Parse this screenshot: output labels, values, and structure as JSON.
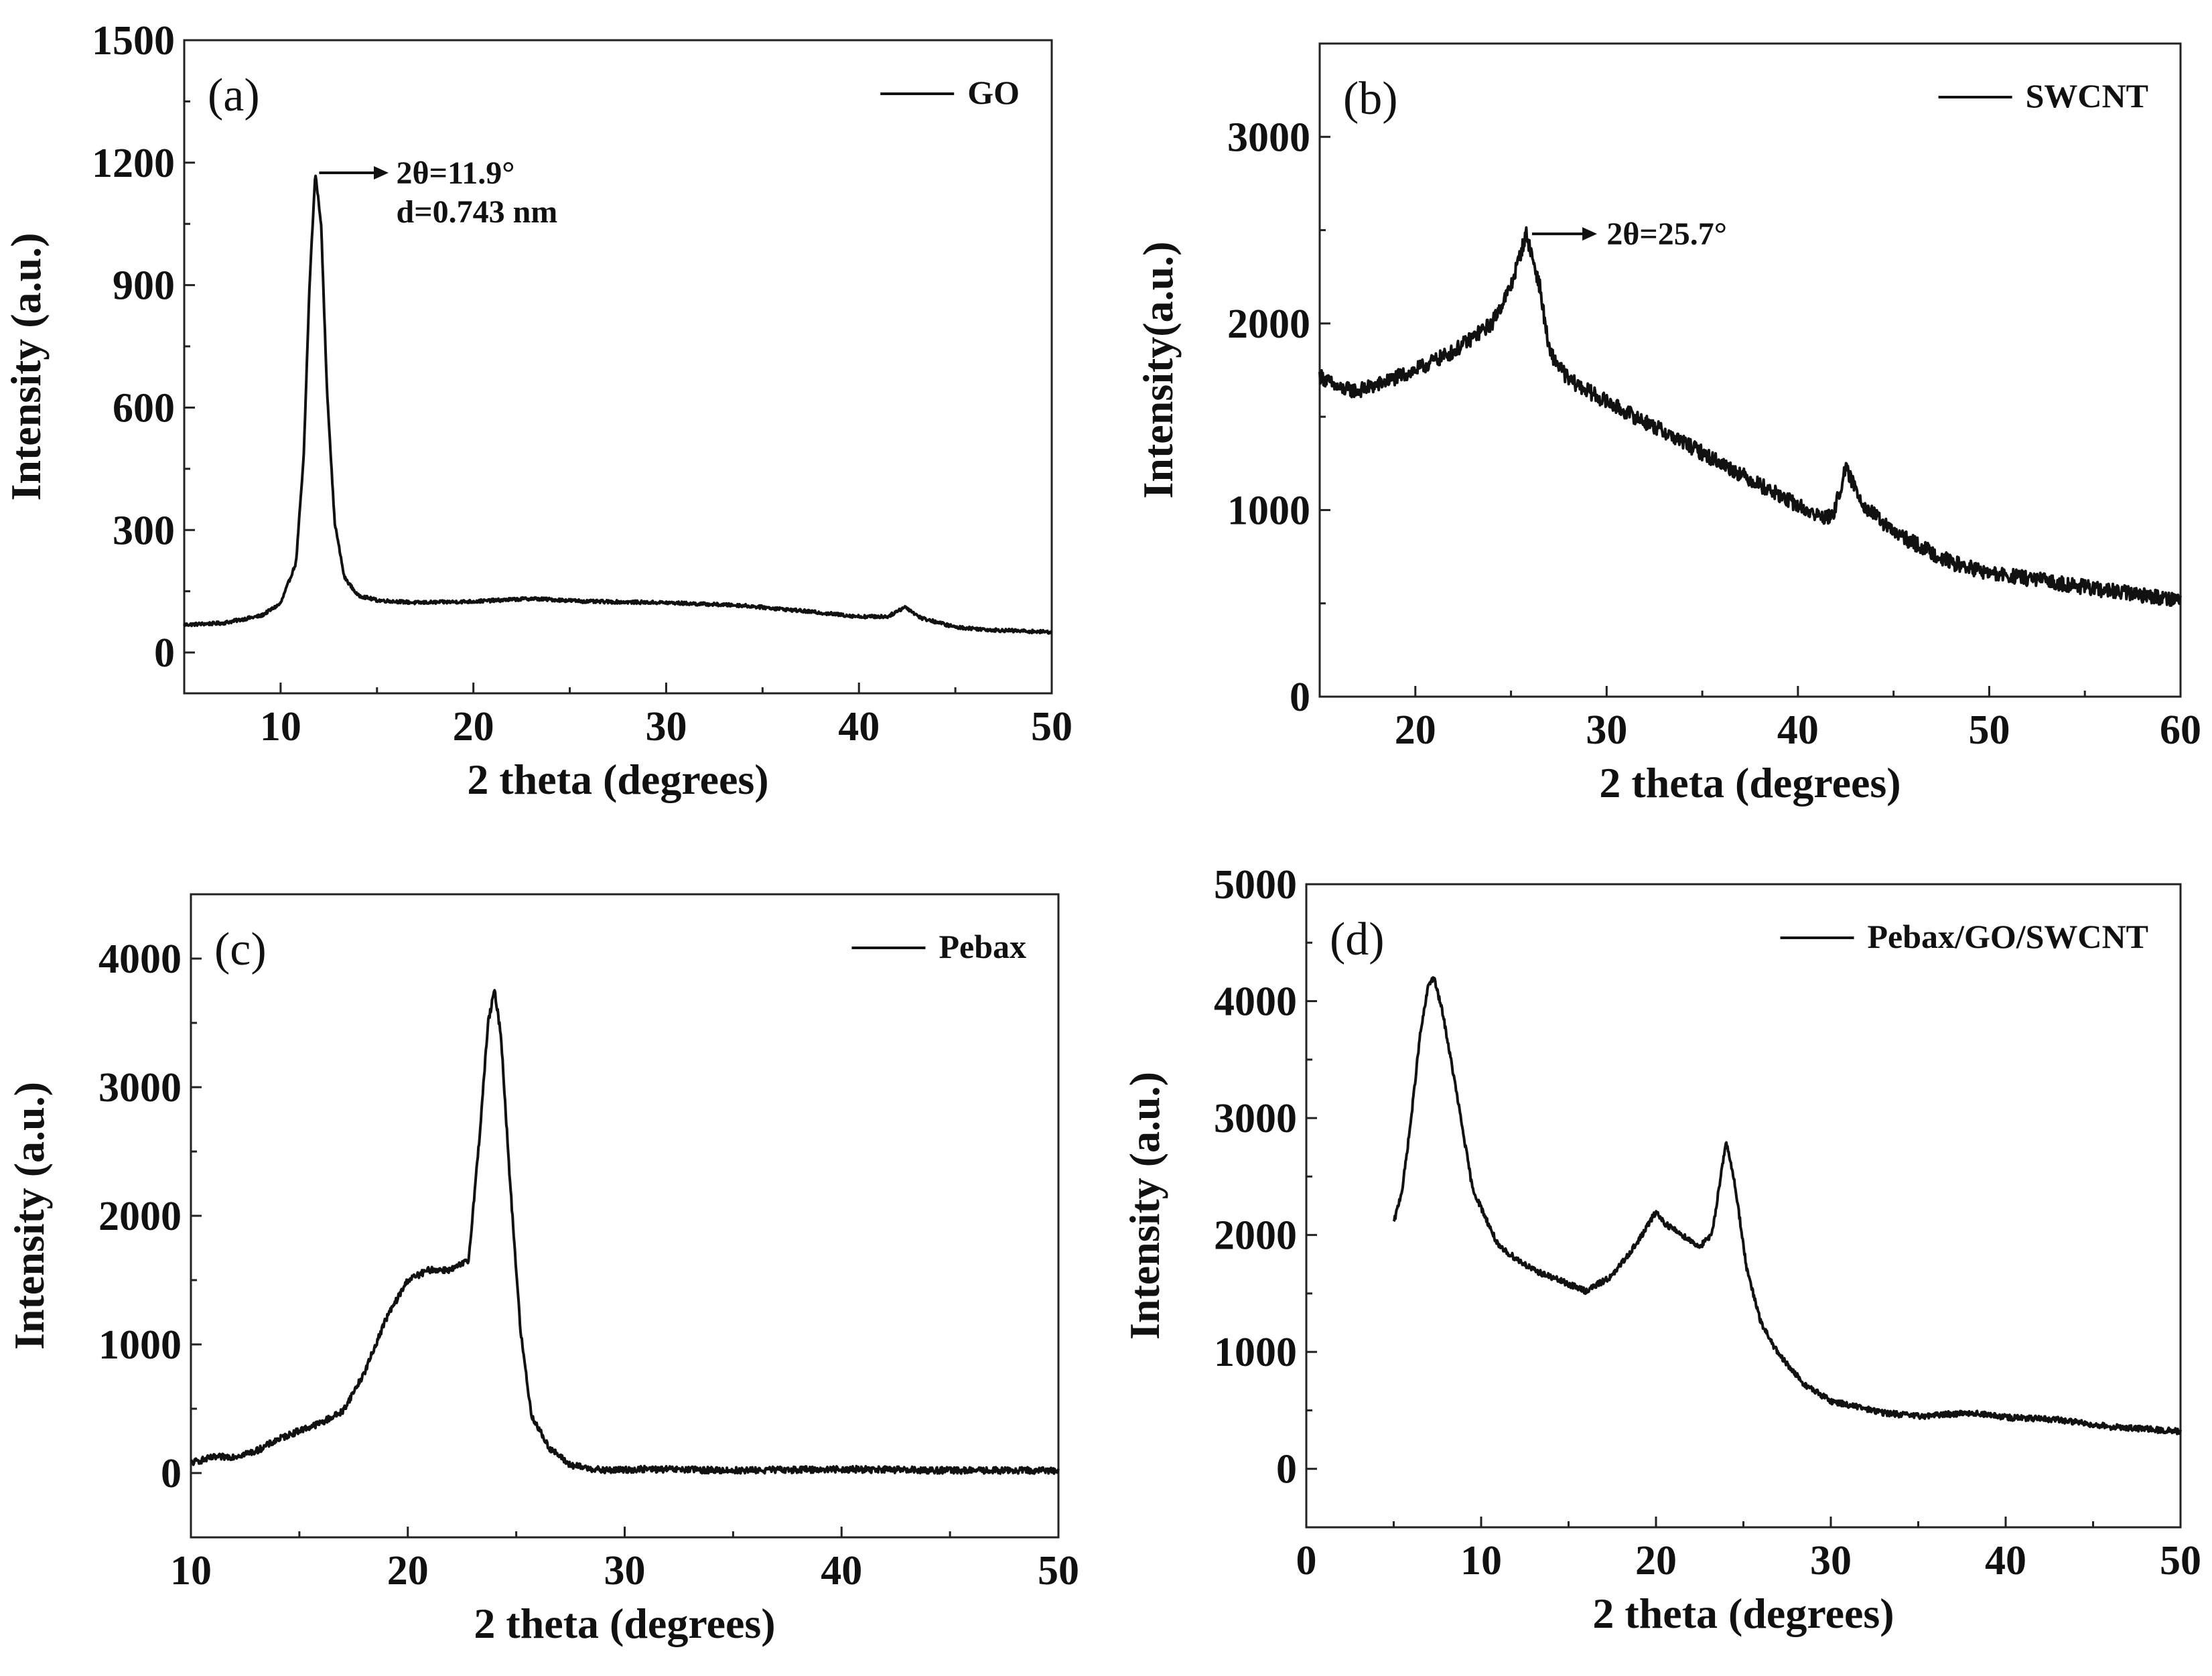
{
  "figure": {
    "colors": {
      "line": "#111111",
      "axis": "#222222",
      "background": "#ffffff"
    },
    "x_title": "2 theta (degrees)"
  },
  "chart_data": [
    {
      "id": "a",
      "type": "line",
      "panel_label": "(a)",
      "legend": "GO",
      "legend_position": "top-right",
      "xlabel": "2 theta (degrees)",
      "ylabel": "Intensity (a.u.)",
      "xlim": [
        5,
        50
      ],
      "ylim": [
        -100,
        1500
      ],
      "xticks": [
        10,
        20,
        30,
        40,
        50
      ],
      "xtick_labels": [
        "10",
        "20",
        "30",
        "40",
        "50"
      ],
      "yticks": [
        0,
        300,
        600,
        900,
        1200,
        1500
      ],
      "ytick_labels": [
        "0",
        "300",
        "600",
        "900",
        "1200",
        "1500"
      ],
      "noise": 4,
      "series": [
        {
          "name": "GO",
          "x": [
            5,
            7,
            9,
            10,
            10.8,
            11.2,
            11.5,
            11.8,
            12.1,
            12.4,
            12.8,
            13.3,
            14,
            15,
            17,
            20,
            23,
            26,
            30,
            34,
            37,
            40,
            41.5,
            42.4,
            43.2,
            45,
            47,
            50
          ],
          "y": [
            68,
            72,
            90,
            120,
            220,
            480,
            900,
            1175,
            1050,
            650,
            320,
            185,
            140,
            128,
            122,
            125,
            132,
            125,
            122,
            115,
            102,
            88,
            88,
            112,
            85,
            62,
            55,
            50
          ]
        }
      ],
      "annotations": [
        {
          "lines": [
            "2θ=11.9°",
            "d=0.743 nm"
          ],
          "arrow_from": [
            12.0,
            1175
          ],
          "arrow_to": [
            15.6,
            1175
          ],
          "text_at": [
            16.0,
            1175
          ]
        }
      ]
    },
    {
      "id": "b",
      "type": "line",
      "panel_label": "(b)",
      "legend": "SWCNT",
      "legend_position": "top-right",
      "xlabel": "2 theta (degrees)",
      "ylabel": "Intensity(a.u.)",
      "xlim": [
        15,
        60
      ],
      "ylim": [
        0,
        3500
      ],
      "xticks": [
        20,
        30,
        40,
        50,
        60
      ],
      "xtick_labels": [
        "20",
        "30",
        "40",
        "50",
        "60"
      ],
      "yticks": [
        0,
        1000,
        2000,
        3000
      ],
      "ytick_labels": [
        "0",
        "1000",
        "2000",
        "3000"
      ],
      "noise": 40,
      "series": [
        {
          "name": "SWCNT",
          "x": [
            15,
            16,
            17,
            18,
            20,
            22,
            24,
            25,
            25.8,
            26.5,
            27,
            28,
            30,
            33,
            36,
            39,
            41,
            41.8,
            42.5,
            43.5,
            45,
            48,
            50,
            53,
            56,
            60
          ],
          "y": [
            1720,
            1650,
            1640,
            1670,
            1750,
            1850,
            2000,
            2200,
            2480,
            2200,
            1850,
            1700,
            1580,
            1420,
            1250,
            1080,
            970,
            960,
            1220,
            1020,
            880,
            720,
            660,
            620,
            570,
            520
          ]
        }
      ],
      "annotations": [
        {
          "lines": [
            "2θ=25.7°"
          ],
          "arrow_from": [
            26.1,
            2480
          ],
          "arrow_to": [
            29.5,
            2480
          ],
          "text_at": [
            30.0,
            2480
          ]
        }
      ]
    },
    {
      "id": "c",
      "type": "line",
      "panel_label": "(c)",
      "legend": "Pebax",
      "legend_position": "top-right",
      "xlabel": "2 theta (degrees)",
      "ylabel": "Intensity (a.u.)",
      "xlim": [
        10,
        50
      ],
      "ylim": [
        -500,
        4500
      ],
      "xticks": [
        10,
        20,
        30,
        40,
        50
      ],
      "xtick_labels": [
        "10",
        "20",
        "30",
        "40",
        "50"
      ],
      "yticks": [
        0,
        1000,
        2000,
        3000,
        4000
      ],
      "ytick_labels": [
        "0",
        "1000",
        "2000",
        "3000",
        "4000"
      ],
      "noise": 25,
      "series": [
        {
          "name": "Pebax",
          "x": [
            10,
            11,
            12,
            13,
            14,
            15,
            16,
            17,
            18,
            19,
            20,
            21,
            22,
            22.8,
            23.3,
            23.7,
            24,
            24.3,
            24.7,
            25.2,
            25.7,
            26.5,
            27.5,
            29,
            31,
            35,
            40,
            45,
            50
          ],
          "y": [
            80,
            120,
            130,
            170,
            260,
            330,
            390,
            480,
            780,
            1200,
            1500,
            1580,
            1580,
            1650,
            2600,
            3500,
            3750,
            3400,
            2300,
            1100,
            450,
            200,
            60,
            20,
            30,
            20,
            30,
            20,
            20
          ]
        }
      ],
      "annotations": []
    },
    {
      "id": "d",
      "type": "line",
      "panel_label": "(d)",
      "legend": "Pebax/GO/SWCNT",
      "legend_position": "top-right",
      "xlabel": "2 theta (degrees)",
      "ylabel": "Intensity (a.u.)",
      "xlim": [
        0,
        50
      ],
      "ylim": [
        -500,
        5000
      ],
      "xticks": [
        0,
        10,
        20,
        30,
        40,
        50
      ],
      "xtick_labels": [
        "0",
        "10",
        "20",
        "30",
        "40",
        "50"
      ],
      "yticks": [
        0,
        1000,
        2000,
        3000,
        4000,
        5000
      ],
      "ytick_labels": [
        "0",
        "1000",
        "2000",
        "3000",
        "4000",
        "5000"
      ],
      "noise": 25,
      "series": [
        {
          "name": "Pebax/GO/SWCNT",
          "x": [
            5,
            5.5,
            6,
            6.5,
            7,
            7.3,
            7.8,
            8.5,
            9.5,
            11,
            13,
            15,
            16,
            17.5,
            19,
            20,
            20.5,
            21.5,
            22.5,
            23.2,
            23.6,
            24,
            24.5,
            25.2,
            26,
            27,
            28.5,
            30,
            33,
            35,
            38,
            40,
            43,
            46,
            50
          ],
          "y": [
            2100,
            2400,
            3000,
            3700,
            4150,
            4200,
            3900,
            3300,
            2400,
            1900,
            1700,
            1580,
            1520,
            1650,
            1950,
            2200,
            2100,
            2000,
            1900,
            2000,
            2400,
            2800,
            2450,
            1700,
            1250,
            980,
            720,
            580,
            480,
            450,
            480,
            440,
            420,
            360,
            320
          ]
        }
      ],
      "annotations": []
    }
  ]
}
